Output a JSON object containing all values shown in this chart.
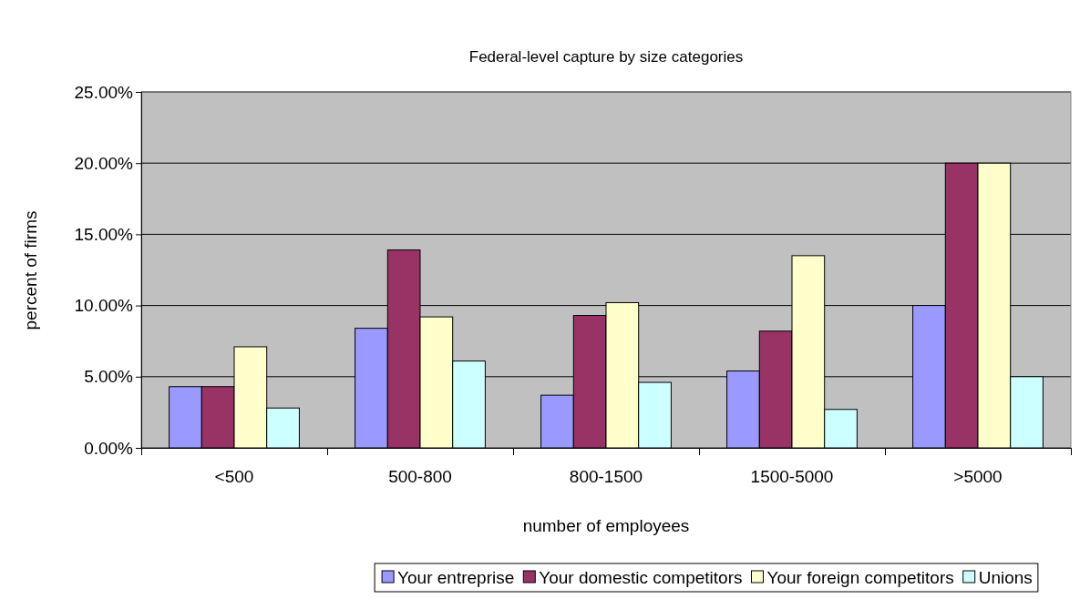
{
  "chart_data": {
    "type": "bar",
    "title": "Federal-level capture by size categories",
    "xlabel": "number of employees",
    "ylabel": "percent of firms",
    "categories": [
      "<500",
      "500-800",
      "800-1500",
      "1500-5000",
      ">5000"
    ],
    "series": [
      {
        "name": "Your entreprise",
        "color": "#9999ff",
        "values": [
          4.3,
          8.4,
          3.7,
          5.4,
          10.0
        ]
      },
      {
        "name": "Your domestic competitors",
        "color": "#993366",
        "values": [
          4.3,
          13.9,
          9.3,
          8.2,
          20.0
        ]
      },
      {
        "name": "Your foreign competitors",
        "color": "#ffffcc",
        "values": [
          7.1,
          9.2,
          10.2,
          13.5,
          20.0
        ]
      },
      {
        "name": "Unions",
        "color": "#ccffff",
        "values": [
          2.8,
          6.1,
          4.6,
          2.7,
          5.0
        ]
      }
    ],
    "ylim": [
      0,
      25
    ],
    "yticks": [
      {
        "value": 0,
        "label": "0.00%"
      },
      {
        "value": 5,
        "label": "5.00%"
      },
      {
        "value": 10,
        "label": "10.00%"
      },
      {
        "value": 15,
        "label": "15.00%"
      },
      {
        "value": 20,
        "label": "20.00%"
      },
      {
        "value": 25,
        "label": "25.00%"
      }
    ],
    "grid": "y",
    "legend": "bottom"
  }
}
